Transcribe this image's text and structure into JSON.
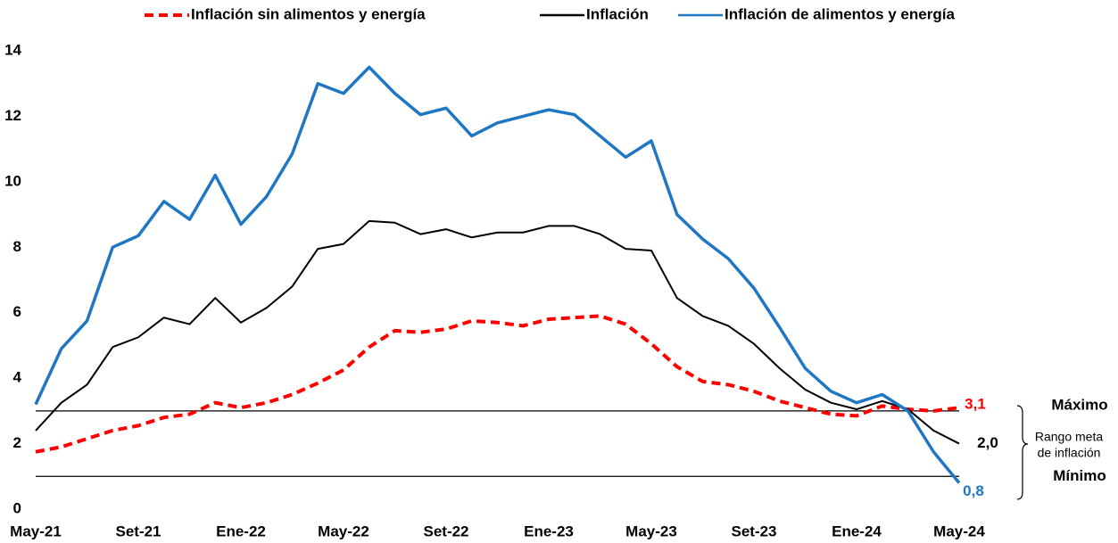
{
  "chart_data": {
    "type": "line",
    "categories": [
      "May-21",
      null,
      null,
      null,
      "Set-21",
      null,
      null,
      null,
      "Ene-22",
      null,
      null,
      null,
      "May-22",
      null,
      null,
      null,
      "Set-22",
      null,
      null,
      null,
      "Ene-23",
      null,
      null,
      null,
      "May-23",
      null,
      null,
      null,
      "Set-23",
      null,
      null,
      null,
      "Ene-24",
      null,
      null,
      null,
      "May-24"
    ],
    "series": [
      {
        "name": "Inflación sin alimentos y energía",
        "color": "#ff0000",
        "dash": true,
        "values": [
          1.75,
          1.9,
          2.15,
          2.4,
          2.55,
          2.8,
          2.9,
          3.25,
          3.1,
          3.25,
          3.5,
          3.85,
          4.25,
          4.95,
          5.45,
          5.4,
          5.5,
          5.75,
          5.7,
          5.6,
          5.8,
          5.85,
          5.9,
          5.65,
          5.05,
          4.35,
          3.9,
          3.8,
          3.6,
          3.3,
          3.1,
          2.9,
          2.85,
          3.15,
          3.05,
          3.0,
          3.1
        ],
        "value_labels": [
          null,
          null,
          null,
          null,
          null,
          null,
          null,
          null,
          null,
          null,
          null,
          null,
          null,
          null,
          null,
          null,
          null,
          null,
          null,
          null,
          null,
          null,
          null,
          null,
          null,
          null,
          null,
          null,
          null,
          null,
          null,
          null,
          null,
          null,
          null,
          null,
          "3,1"
        ]
      },
      {
        "name": "Inflación",
        "color": "#000000",
        "dash": false,
        "values": [
          2.4,
          3.25,
          3.8,
          4.95,
          5.25,
          5.85,
          5.65,
          6.45,
          5.7,
          6.15,
          6.8,
          7.95,
          8.1,
          8.8,
          8.75,
          8.4,
          8.55,
          8.3,
          8.45,
          8.45,
          8.65,
          8.65,
          8.4,
          7.95,
          7.9,
          6.45,
          5.9,
          5.6,
          5.05,
          4.3,
          3.65,
          3.25,
          3.05,
          3.3,
          3.05,
          2.4,
          2.0
        ],
        "value_labels": [
          null,
          null,
          null,
          null,
          null,
          null,
          null,
          null,
          null,
          null,
          null,
          null,
          null,
          null,
          null,
          null,
          null,
          null,
          null,
          null,
          null,
          null,
          null,
          null,
          null,
          null,
          null,
          null,
          null,
          null,
          null,
          null,
          null,
          null,
          null,
          null,
          "2,0"
        ]
      },
      {
        "name": "Inflación de alimentos y energía",
        "color": "#1f77c4",
        "dash": false,
        "values": [
          3.2,
          4.9,
          5.75,
          8.0,
          8.35,
          9.4,
          8.85,
          10.2,
          8.7,
          9.55,
          10.85,
          13.0,
          12.7,
          13.5,
          12.7,
          12.05,
          12.25,
          11.4,
          11.8,
          12.0,
          12.2,
          12.05,
          11.4,
          10.75,
          11.25,
          9.0,
          8.25,
          7.65,
          6.75,
          5.55,
          4.3,
          3.6,
          3.25,
          3.5,
          3.0,
          1.75,
          0.8
        ],
        "value_labels": [
          null,
          null,
          null,
          null,
          null,
          null,
          null,
          null,
          null,
          null,
          null,
          null,
          null,
          null,
          null,
          null,
          null,
          null,
          null,
          null,
          null,
          null,
          null,
          null,
          null,
          null,
          null,
          null,
          null,
          null,
          null,
          null,
          null,
          null,
          null,
          null,
          "0,8"
        ]
      }
    ],
    "ylim": [
      0,
      14
    ],
    "yticks": [
      0,
      2,
      4,
      6,
      8,
      10,
      12,
      14
    ],
    "reference_lines": [
      {
        "value": 3,
        "label": "Máximo"
      },
      {
        "value": 1,
        "label": "Mínimo"
      }
    ],
    "annotation": [
      "Rango meta",
      "de inflación"
    ],
    "legend": "top"
  }
}
